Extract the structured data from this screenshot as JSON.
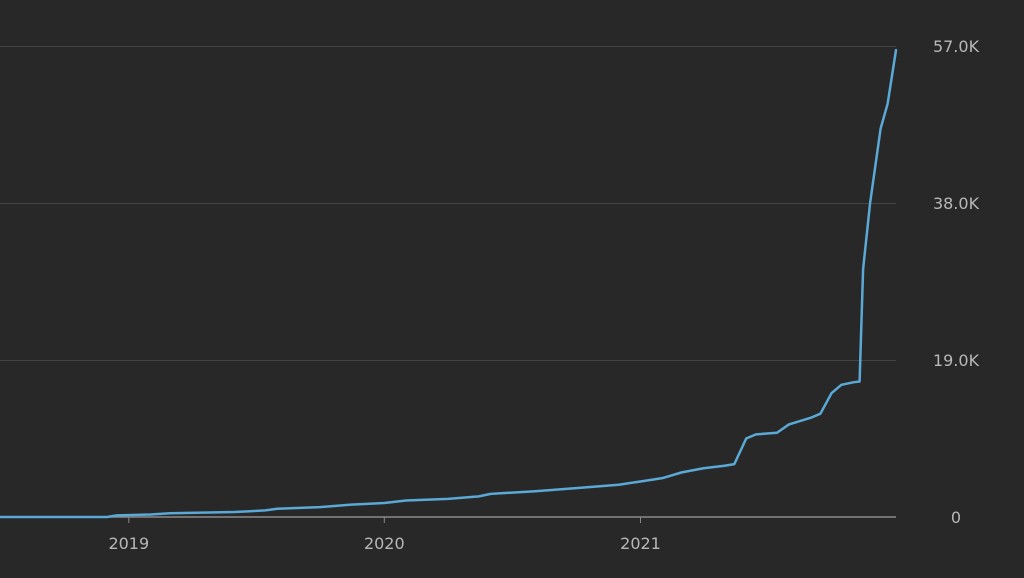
{
  "chart_data": {
    "type": "line",
    "title": "",
    "xlabel": "",
    "ylabel": "",
    "grid": true,
    "y_ticks": [
      {
        "value": 0,
        "label": "0"
      },
      {
        "value": 19000,
        "label": "19.0K"
      },
      {
        "value": 38000,
        "label": "38.0K"
      },
      {
        "value": 57000,
        "label": "57.0K"
      }
    ],
    "x_ticks": [
      {
        "value": "2019-01-01",
        "label": "2019"
      },
      {
        "value": "2020-01-01",
        "label": "2020"
      },
      {
        "value": "2021-01-01",
        "label": "2021"
      }
    ],
    "xlim": [
      "2018-07-01",
      "2022-01-01"
    ],
    "ylim": [
      0,
      57000
    ],
    "colors": {
      "background": "#282828",
      "line": "#5aa9d6",
      "grid": "#444444",
      "baseline": "#8a8a8a",
      "text": "#b8b8b8"
    },
    "series": [
      {
        "points": [
          [
            "2018-07-01",
            0
          ],
          [
            "2018-12-01",
            0
          ],
          [
            "2018-12-15",
            200
          ],
          [
            "2019-02-01",
            300
          ],
          [
            "2019-03-01",
            450
          ],
          [
            "2019-06-01",
            600
          ],
          [
            "2019-07-15",
            800
          ],
          [
            "2019-08-01",
            1000
          ],
          [
            "2019-10-01",
            1200
          ],
          [
            "2019-11-15",
            1500
          ],
          [
            "2020-01-01",
            1700
          ],
          [
            "2020-02-01",
            2000
          ],
          [
            "2020-04-01",
            2200
          ],
          [
            "2020-05-15",
            2500
          ],
          [
            "2020-06-01",
            2800
          ],
          [
            "2020-08-01",
            3100
          ],
          [
            "2020-10-01",
            3500
          ],
          [
            "2020-12-01",
            3900
          ],
          [
            "2021-01-01",
            4300
          ],
          [
            "2021-02-01",
            4700
          ],
          [
            "2021-03-01",
            5400
          ],
          [
            "2021-04-01",
            5900
          ],
          [
            "2021-05-01",
            6200
          ],
          [
            "2021-05-15",
            6400
          ],
          [
            "2021-06-01",
            9500
          ],
          [
            "2021-06-15",
            10000
          ],
          [
            "2021-07-15",
            10200
          ],
          [
            "2021-08-01",
            11200
          ],
          [
            "2021-09-01",
            12000
          ],
          [
            "2021-09-15",
            12500
          ],
          [
            "2021-10-01",
            15000
          ],
          [
            "2021-10-15",
            16000
          ],
          [
            "2021-11-01",
            16300
          ],
          [
            "2021-11-10",
            16400
          ],
          [
            "2021-11-15",
            30000
          ],
          [
            "2021-11-25",
            38000
          ],
          [
            "2021-12-05",
            44000
          ],
          [
            "2021-12-10",
            47000
          ],
          [
            "2021-12-20",
            50000
          ],
          [
            "2022-01-01",
            56500
          ]
        ]
      }
    ]
  }
}
